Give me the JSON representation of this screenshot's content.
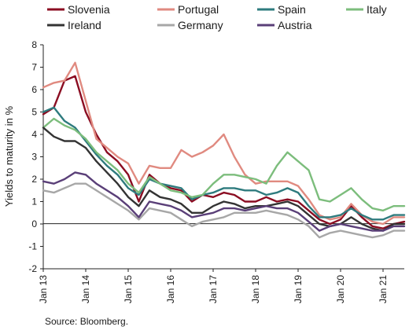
{
  "source_note": "Source: Bloomberg.",
  "chart_data": {
    "type": "line",
    "title": "",
    "xlabel": "",
    "ylabel": "Yields to maturity in %",
    "ylim": [
      -2,
      8
    ],
    "yticks": [
      "-2",
      "-1",
      "0",
      "1",
      "2",
      "3",
      "4",
      "5",
      "6",
      "7",
      "8"
    ],
    "grid": false,
    "legend_position": "top",
    "x_start": "Jan 13",
    "x_end": "Jul 21",
    "x_tick_labels": [
      "Jan 13",
      "Jan 14",
      "Jan 15",
      "Jan 16",
      "Jan 17",
      "Jan 18",
      "Jan 19",
      "Jan 20",
      "Jan 21"
    ],
    "x": [
      2013.0,
      2013.25,
      2013.5,
      2013.75,
      2014.0,
      2014.25,
      2014.5,
      2014.75,
      2015.0,
      2015.25,
      2015.5,
      2015.75,
      2016.0,
      2016.25,
      2016.5,
      2016.75,
      2017.0,
      2017.25,
      2017.5,
      2017.75,
      2018.0,
      2018.25,
      2018.5,
      2018.75,
      2019.0,
      2019.25,
      2019.5,
      2019.75,
      2020.0,
      2020.25,
      2020.5,
      2020.75,
      2021.0,
      2021.25,
      2021.5
    ],
    "series": [
      {
        "name": "Slovenia",
        "color": "#8b0d22",
        "values": [
          4.9,
          5.2,
          6.4,
          6.6,
          5.0,
          4.0,
          3.2,
          2.8,
          2.2,
          1.0,
          2.2,
          1.8,
          1.6,
          1.5,
          1.0,
          1.3,
          1.2,
          1.4,
          1.3,
          1.0,
          1.0,
          1.2,
          1.0,
          1.1,
          1.0,
          0.6,
          0.2,
          0.0,
          0.2,
          0.8,
          0.3,
          -0.1,
          -0.2,
          0.0,
          0.1
        ]
      },
      {
        "name": "Portugal",
        "color": "#e08a80",
        "values": [
          6.1,
          6.3,
          6.4,
          7.2,
          5.5,
          3.8,
          3.4,
          3.0,
          2.7,
          1.8,
          2.6,
          2.5,
          2.5,
          3.3,
          3.0,
          3.2,
          3.5,
          4.0,
          3.0,
          2.2,
          1.8,
          1.9,
          1.9,
          1.9,
          1.7,
          1.1,
          0.4,
          0.2,
          0.3,
          0.9,
          0.4,
          0.1,
          0.0,
          0.3,
          0.3
        ]
      },
      {
        "name": "Spain",
        "color": "#2e7b7e",
        "values": [
          5.0,
          5.2,
          4.6,
          4.3,
          3.7,
          3.1,
          2.6,
          2.2,
          1.6,
          1.3,
          2.0,
          1.8,
          1.7,
          1.6,
          1.1,
          1.3,
          1.4,
          1.6,
          1.6,
          1.5,
          1.5,
          1.3,
          1.4,
          1.6,
          1.4,
          0.8,
          0.3,
          0.3,
          0.4,
          0.7,
          0.4,
          0.2,
          0.2,
          0.4,
          0.4
        ]
      },
      {
        "name": "Italy",
        "color": "#7cbd7c",
        "values": [
          4.3,
          4.7,
          4.4,
          4.2,
          3.8,
          3.2,
          2.8,
          2.4,
          1.8,
          1.4,
          2.1,
          1.8,
          1.5,
          1.4,
          1.2,
          1.3,
          1.8,
          2.2,
          2.2,
          2.1,
          2.0,
          1.8,
          2.6,
          3.2,
          2.8,
          2.4,
          1.1,
          1.0,
          1.3,
          1.6,
          1.1,
          0.7,
          0.6,
          0.8,
          0.8
        ]
      },
      {
        "name": "Ireland",
        "color": "#333333",
        "values": [
          4.3,
          3.9,
          3.7,
          3.7,
          3.4,
          2.8,
          2.3,
          1.8,
          1.2,
          0.8,
          1.5,
          1.2,
          1.1,
          0.9,
          0.5,
          0.5,
          0.8,
          1.0,
          0.9,
          0.7,
          0.8,
          0.8,
          0.9,
          1.0,
          0.8,
          0.4,
          0.0,
          -0.1,
          0.0,
          0.3,
          0.0,
          -0.2,
          -0.3,
          0.0,
          0.0
        ]
      },
      {
        "name": "Germany",
        "color": "#a7a7a7",
        "values": [
          1.5,
          1.4,
          1.6,
          1.8,
          1.8,
          1.5,
          1.2,
          0.9,
          0.6,
          0.2,
          0.7,
          0.6,
          0.5,
          0.2,
          -0.1,
          0.1,
          0.2,
          0.3,
          0.5,
          0.5,
          0.5,
          0.6,
          0.5,
          0.4,
          0.2,
          -0.1,
          -0.6,
          -0.4,
          -0.3,
          -0.4,
          -0.5,
          -0.6,
          -0.5,
          -0.3,
          -0.3
        ]
      },
      {
        "name": "Austria",
        "color": "#5a3f78",
        "values": [
          1.9,
          1.8,
          2.0,
          2.3,
          2.2,
          1.8,
          1.5,
          1.2,
          0.8,
          0.3,
          1.0,
          0.9,
          0.8,
          0.6,
          0.3,
          0.4,
          0.5,
          0.7,
          0.7,
          0.6,
          0.7,
          0.8,
          0.7,
          0.7,
          0.5,
          0.1,
          -0.3,
          -0.1,
          0.0,
          -0.1,
          -0.2,
          -0.3,
          -0.3,
          -0.1,
          -0.1
        ]
      }
    ]
  }
}
